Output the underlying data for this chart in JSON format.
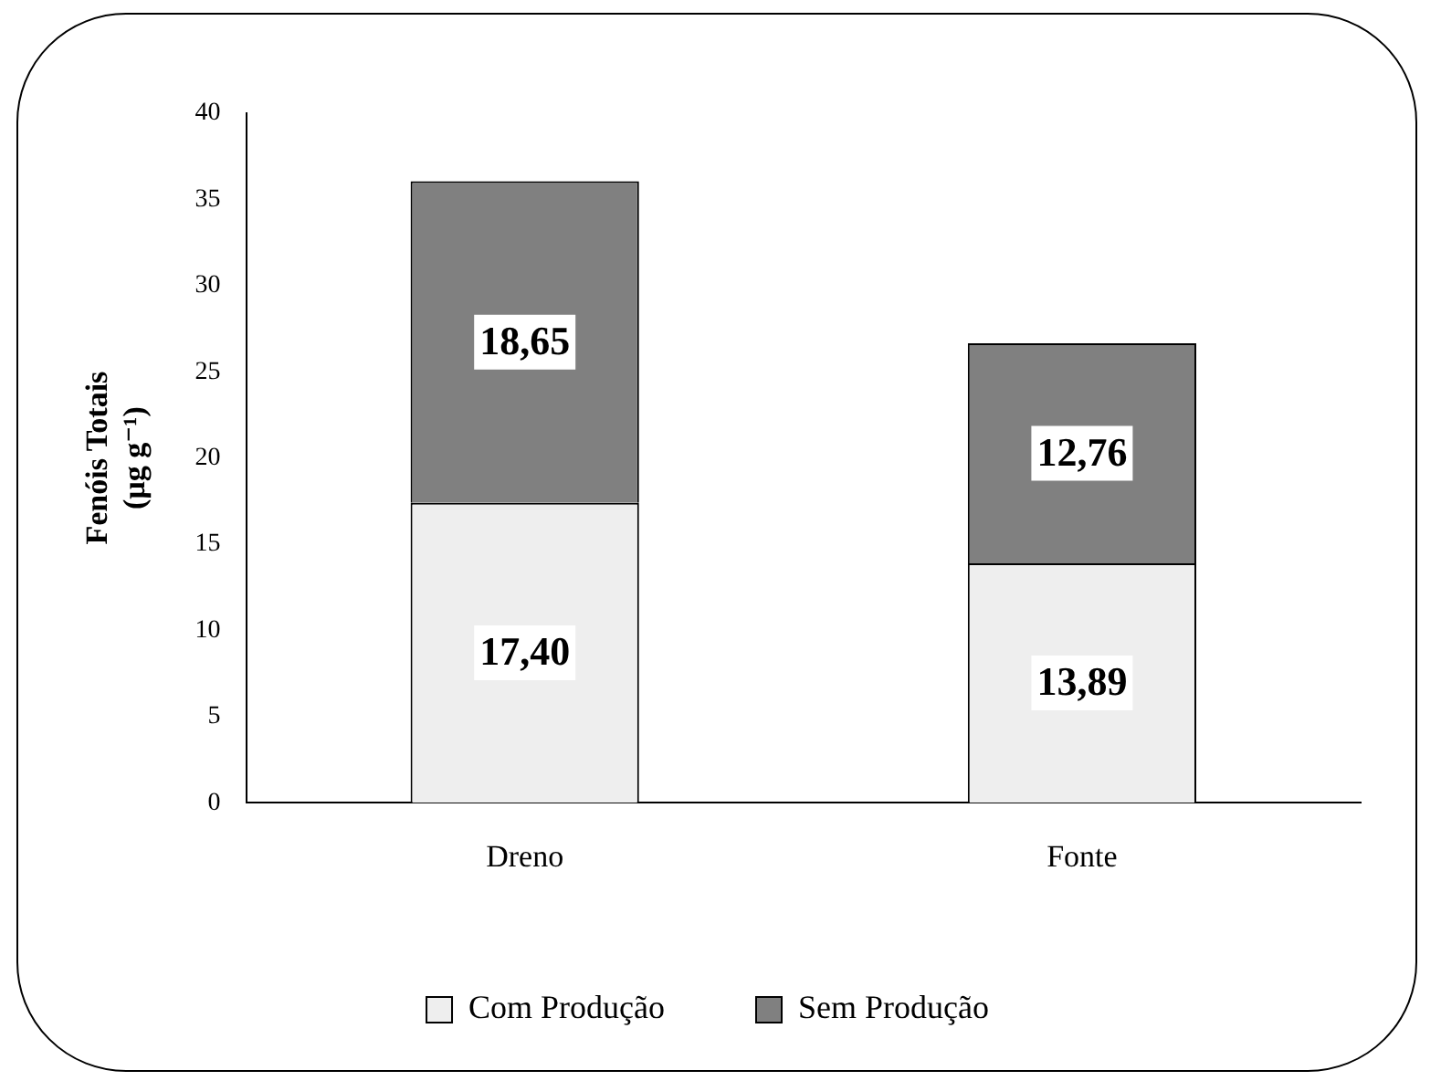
{
  "chart_data": {
    "type": "bar",
    "stacked": true,
    "ylabel": "Fenóis Totais\n(µg g⁻¹)",
    "categories": [
      "Dreno",
      "Fonte"
    ],
    "series": [
      {
        "name": "Com Produção",
        "color": "#eeeeee",
        "values": [
          17.4,
          13.89
        ],
        "value_labels": [
          "17,40",
          "13,89"
        ]
      },
      {
        "name": "Sem Produção",
        "color": "#808080",
        "values": [
          18.65,
          12.76
        ],
        "value_labels": [
          "18,65",
          "12,76"
        ]
      }
    ],
    "ylim": [
      0,
      40
    ],
    "yticks": [
      0,
      5,
      10,
      15,
      20,
      25,
      30,
      35,
      40
    ],
    "grid": false,
    "legend": "bottom"
  }
}
